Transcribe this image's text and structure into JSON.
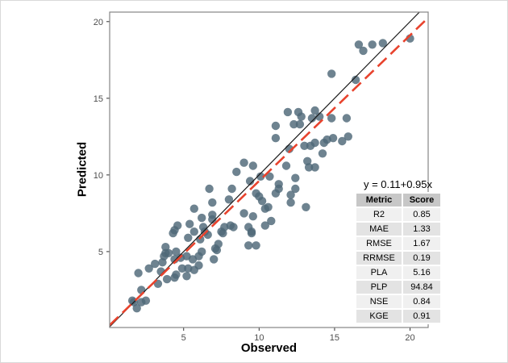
{
  "figure": {
    "x_label": "Observed",
    "y_label": "Predicted",
    "equation": "y = 0.11+0.95x"
  },
  "chart_data": {
    "type": "scatter",
    "title": "",
    "xlabel": "Observed",
    "ylabel": "Predicted",
    "xlim": [
      0.1,
      21.2
    ],
    "ylim": [
      0.05,
      20.62
    ],
    "x_ticks": [
      5,
      10,
      15,
      20
    ],
    "y_ticks": [
      5,
      10,
      15,
      20
    ],
    "grid": false,
    "legend": "none",
    "point_color": "#4e6877",
    "point_opacity": 0.82,
    "panel_border_color": "#858585",
    "points": [
      [
        1.6,
        1.8
      ],
      [
        1.7,
        1.7
      ],
      [
        1.9,
        1.3
      ],
      [
        2.2,
        1.7
      ],
      [
        2.0,
        3.6
      ],
      [
        2.2,
        2.5
      ],
      [
        2.7,
        3.9
      ],
      [
        2.5,
        1.8
      ],
      [
        3.1,
        4.2
      ],
      [
        3.5,
        3.7
      ],
      [
        3.6,
        4.3
      ],
      [
        3.7,
        4.7
      ],
      [
        3.8,
        4.9
      ],
      [
        4.4,
        4.5
      ],
      [
        4.5,
        5.0
      ],
      [
        4.8,
        4.6
      ],
      [
        5.2,
        4.7
      ],
      [
        5.3,
        3.9
      ],
      [
        5.7,
        3.8
      ],
      [
        6.0,
        4.1
      ],
      [
        5.2,
        3.4
      ],
      [
        4.4,
        3.3
      ],
      [
        3.8,
        5.3
      ],
      [
        4.0,
        4.9
      ],
      [
        4.3,
        6.2
      ],
      [
        4.4,
        6.4
      ],
      [
        4.6,
        6.7
      ],
      [
        5.3,
        5.9
      ],
      [
        5.4,
        6.8
      ],
      [
        5.7,
        6.3
      ],
      [
        6.1,
        5.8
      ],
      [
        6.3,
        6.6
      ],
      [
        6.6,
        6.1
      ],
      [
        7.1,
        5.2
      ],
      [
        7.0,
        4.5
      ],
      [
        4.9,
        3.9
      ],
      [
        4.5,
        3.5
      ],
      [
        3.3,
        2.9
      ],
      [
        3.9,
        3.2
      ],
      [
        7.5,
        6.3
      ],
      [
        7.7,
        6.6
      ],
      [
        8.1,
        6.7
      ],
      [
        8.3,
        6.6
      ],
      [
        9.3,
        6.6
      ],
      [
        9.5,
        6.3
      ],
      [
        9.8,
        5.4
      ],
      [
        9.3,
        5.4
      ],
      [
        10.4,
        6.7
      ],
      [
        7.3,
        5.5
      ],
      [
        7.2,
        5.1
      ],
      [
        6.9,
        7.4
      ],
      [
        6.9,
        7.1
      ],
      [
        6.4,
        6.3
      ],
      [
        6.2,
        7.2
      ],
      [
        5.7,
        7.8
      ],
      [
        6.7,
        9.1
      ],
      [
        6.9,
        8.2
      ],
      [
        8.0,
        8.4
      ],
      [
        8.2,
        9.1
      ],
      [
        7.6,
        6.2
      ],
      [
        8.5,
        10.2
      ],
      [
        9.0,
        10.8
      ],
      [
        9.4,
        9.6
      ],
      [
        9.6,
        10.6
      ],
      [
        10.1,
        9.9
      ],
      [
        9.8,
        8.8
      ],
      [
        10.0,
        8.6
      ],
      [
        10.2,
        8.3
      ],
      [
        10.4,
        7.8
      ],
      [
        10.7,
        9.9
      ],
      [
        10.8,
        7.0
      ],
      [
        11.1,
        8.8
      ],
      [
        11.3,
        9.4
      ],
      [
        11.3,
        9.1
      ],
      [
        11.8,
        10.6
      ],
      [
        11.1,
        12.4
      ],
      [
        11.1,
        13.2
      ],
      [
        11.9,
        14.1
      ],
      [
        12.0,
        11.7
      ],
      [
        12.1,
        8.7
      ],
      [
        12.1,
        8.2
      ],
      [
        10.6,
        7.9
      ],
      [
        12.4,
        9.8
      ],
      [
        12.4,
        9.1
      ],
      [
        12.3,
        13.3
      ],
      [
        12.6,
        14.1
      ],
      [
        12.7,
        13.3
      ],
      [
        12.8,
        13.8
      ],
      [
        13.0,
        11.9
      ],
      [
        13.1,
        7.9
      ],
      [
        13.2,
        10.9
      ],
      [
        13.3,
        10.5
      ],
      [
        13.4,
        11.9
      ],
      [
        13.5,
        13.7
      ],
      [
        13.7,
        14.2
      ],
      [
        13.7,
        12.1
      ],
      [
        13.7,
        10.5
      ],
      [
        14.0,
        13.8
      ],
      [
        14.3,
        12.1
      ],
      [
        14.2,
        11.4
      ],
      [
        14.5,
        12.3
      ],
      [
        14.8,
        16.6
      ],
      [
        14.8,
        13.7
      ],
      [
        14.9,
        12.4
      ],
      [
        15.5,
        12.2
      ],
      [
        15.8,
        13.7
      ],
      [
        15.9,
        12.5
      ],
      [
        16.4,
        16.2
      ],
      [
        16.6,
        18.5
      ],
      [
        16.9,
        18.1
      ],
      [
        17.5,
        18.5
      ],
      [
        18.2,
        18.6
      ],
      [
        20.0,
        18.9
      ],
      [
        9.6,
        7.3
      ],
      [
        9.5,
        6.2
      ],
      [
        9.0,
        7.5
      ],
      [
        5.6,
        4.5
      ],
      [
        6.0,
        4.7
      ],
      [
        6.2,
        5.0
      ]
    ],
    "lines": [
      {
        "name": "one-to-one",
        "style": "solid",
        "color": "#1a1a1a",
        "width": 1.2,
        "slope": 1,
        "intercept": 0
      },
      {
        "name": "regression",
        "style": "dashed",
        "color": "#e8432d",
        "width": 2.6,
        "slope": 0.95,
        "intercept": 0.11
      }
    ],
    "annotation": "y = 0.11+0.95x",
    "table": {
      "headers": [
        "Metric",
        "Score"
      ],
      "rows": [
        [
          "R2",
          "0.85"
        ],
        [
          "MAE",
          "1.33"
        ],
        [
          "RMSE",
          "1.67"
        ],
        [
          "RRMSE",
          "0.19"
        ],
        [
          "PLA",
          "5.16"
        ],
        [
          "PLP",
          "94.84"
        ],
        [
          "NSE",
          "0.84"
        ],
        [
          "KGE",
          "0.91"
        ]
      ]
    }
  }
}
